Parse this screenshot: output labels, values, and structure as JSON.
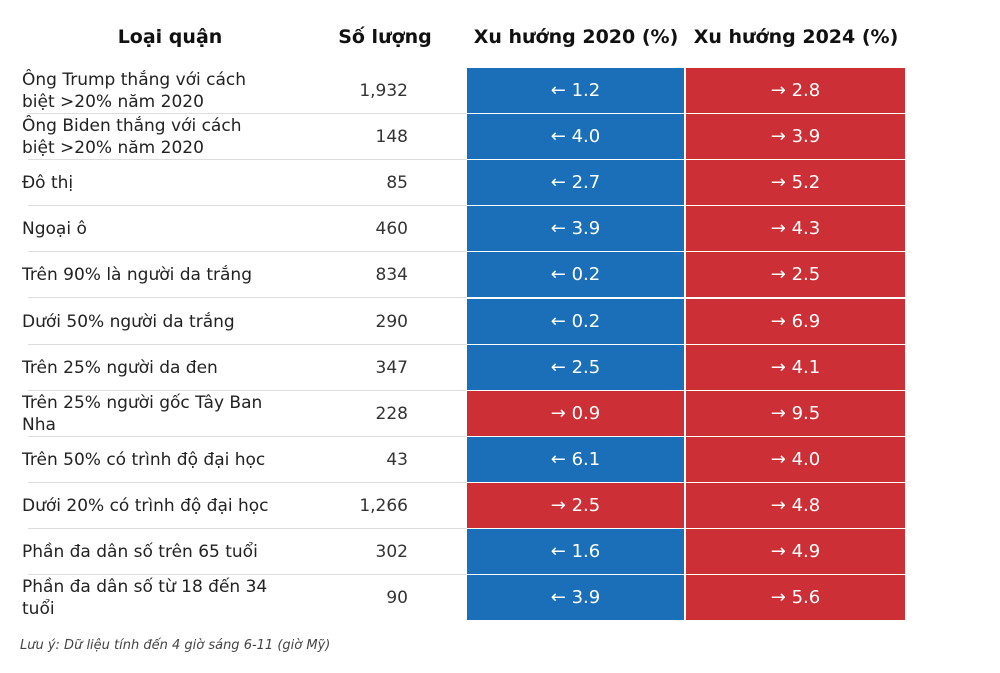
{
  "table": {
    "header": [
      "Loại quận",
      "Số lượng",
      "Xu hướng 2020 (%)",
      "Xu hướng 2024 (%)"
    ],
    "rows": [
      [
        "Ông Trump thắng với cách biệt >20% năm 2020",
        "1,932",
        {
          "text": "← 1.2",
          "color": "#1b6fb8"
        },
        {
          "text": "→ 2.8",
          "color": "#cc2f35"
        }
      ],
      [
        "Ông Biden thắng với cách biệt >20% năm 2020",
        "148",
        {
          "text": "← 4.0",
          "color": "#1b6fb8"
        },
        {
          "text": "→ 3.9",
          "color": "#cc2f35"
        }
      ],
      [
        "Đô thị",
        "85",
        {
          "text": "← 2.7",
          "color": "#1b6fb8"
        },
        {
          "text": "→ 5.2",
          "color": "#cc2f35"
        }
      ],
      [
        "Ngoại ô",
        "460",
        {
          "text": "← 3.9",
          "color": "#1b6fb8"
        },
        {
          "text": "→ 4.3",
          "color": "#cc2f35"
        }
      ],
      [
        "Trên 90% là người da trắng",
        "834",
        {
          "text": "← 0.2",
          "color": "#1b6fb8"
        },
        {
          "text": "→ 2.5",
          "color": "#cc2f35"
        }
      ],
      [
        "Dưới 50% người da trắng",
        "290",
        {
          "text": "← 0.2",
          "color": "#1b6fb8"
        },
        {
          "text": "→ 6.9",
          "color": "#cc2f35"
        }
      ],
      [
        "Trên 25% người da đen",
        "347",
        {
          "text": "← 2.5",
          "color": "#1b6fb8"
        },
        {
          "text": "→ 4.1",
          "color": "#cc2f35"
        }
      ],
      [
        "Trên 25% người gốc Tây Ban Nha",
        "228",
        {
          "text": "→ 0.9",
          "color": "#cc2f35"
        },
        {
          "text": "→ 9.5",
          "color": "#cc2f35"
        }
      ],
      [
        "Trên 50% có trình độ đại học",
        "43",
        {
          "text": "← 6.1",
          "color": "#1b6fb8"
        },
        {
          "text": "→ 4.0",
          "color": "#cc2f35"
        }
      ],
      [
        "Dưới 20% có trình độ đại học",
        "1,266",
        {
          "text": "→ 2.5",
          "color": "#cc2f35"
        },
        {
          "text": "→ 4.8",
          "color": "#cc2f35"
        }
      ],
      [
        "Phần đa dân số trên 65 tuổi",
        "302",
        {
          "text": "← 1.6",
          "color": "#1b6fb8"
        },
        {
          "text": "→ 4.9",
          "color": "#cc2f35"
        }
      ],
      [
        "Phần đa dân số từ 18 đến 34 tuổi",
        "90",
        {
          "text": "← 3.9",
          "color": "#1b6fb8"
        },
        {
          "text": "→ 5.6",
          "color": "#cc2f35"
        }
      ]
    ]
  },
  "note": "Lưu ý: Dữ liệu tính đến  4 giờ sáng 6-11 (giờ Mỹ)"
}
